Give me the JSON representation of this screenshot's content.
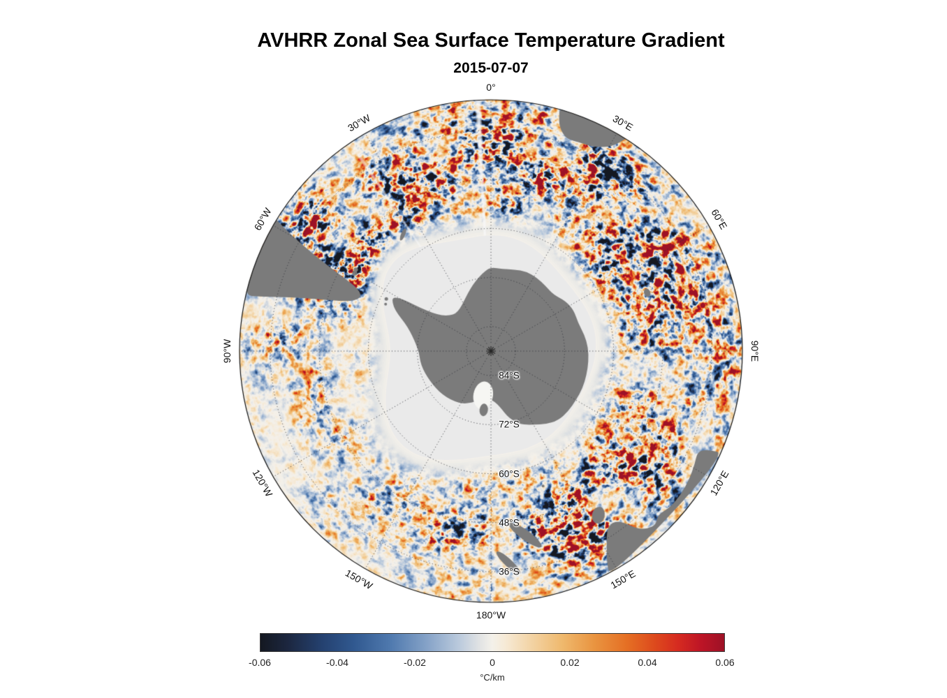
{
  "title": "AVHRR Zonal Sea Surface Temperature Gradient",
  "subtitle": "2015-07-07",
  "map": {
    "projection": "south-polar-stereographic",
    "outer_colatitude_deg": 61.5,
    "meridian_labels": [
      {
        "lon_deg": 0,
        "label": "0°"
      },
      {
        "lon_deg": 30,
        "label": "30°E"
      },
      {
        "lon_deg": 60,
        "label": "60°E"
      },
      {
        "lon_deg": 90,
        "label": "90°E"
      },
      {
        "lon_deg": 120,
        "label": "120°E"
      },
      {
        "lon_deg": 150,
        "label": "150°E"
      },
      {
        "lon_deg": 180,
        "label": "180°W"
      },
      {
        "lon_deg": 210,
        "label": "150°W"
      },
      {
        "lon_deg": 240,
        "label": "120°W"
      },
      {
        "lon_deg": 270,
        "label": "90°W"
      },
      {
        "lon_deg": 300,
        "label": "60°W"
      },
      {
        "lon_deg": 330,
        "label": "30°W"
      }
    ],
    "parallel_labels": [
      {
        "lat_deg_s": 84,
        "label": "84°S"
      },
      {
        "lat_deg_s": 72,
        "label": "72°S"
      },
      {
        "lat_deg_s": 60,
        "label": "60°S"
      },
      {
        "lat_deg_s": 48,
        "label": "48°S"
      },
      {
        "lat_deg_s": 36,
        "label": "36°S"
      }
    ],
    "land_color": "#7b7b7b",
    "sea_ice_color": "#eaeaea",
    "ocean_zero_color": "#f4f1ea",
    "graticule_color": "#2c2f36"
  },
  "colorbar": {
    "min": -0.06,
    "max": 0.06,
    "ticks": [
      "-0.06",
      "-0.04",
      "-0.02",
      "0",
      "0.02",
      "0.04",
      "0.06"
    ],
    "tick_values": [
      -0.06,
      -0.04,
      -0.02,
      0,
      0.02,
      0.04,
      0.06
    ],
    "unit_label": "°C/km",
    "stops": [
      {
        "t": 0.0,
        "c": "#141821"
      },
      {
        "t": 0.06,
        "c": "#1c2740"
      },
      {
        "t": 0.13,
        "c": "#24406e"
      },
      {
        "t": 0.2,
        "c": "#30588f"
      },
      {
        "t": 0.28,
        "c": "#4f79ae"
      },
      {
        "t": 0.36,
        "c": "#86a3c8"
      },
      {
        "t": 0.43,
        "c": "#bccbdd"
      },
      {
        "t": 0.475,
        "c": "#e3e4e4"
      },
      {
        "t": 0.5,
        "c": "#f4f1ea"
      },
      {
        "t": 0.53,
        "c": "#f6e9d4"
      },
      {
        "t": 0.58,
        "c": "#f3d5a8"
      },
      {
        "t": 0.65,
        "c": "#efb96e"
      },
      {
        "t": 0.72,
        "c": "#e99440"
      },
      {
        "t": 0.79,
        "c": "#e56f24"
      },
      {
        "t": 0.85,
        "c": "#dd4a1d"
      },
      {
        "t": 0.9,
        "c": "#d62b20"
      },
      {
        "t": 0.95,
        "c": "#bd1526"
      },
      {
        "t": 1.0,
        "c": "#9d1126"
      }
    ]
  },
  "chart_data": {
    "type": "heatmap",
    "title": "AVHRR Zonal Sea Surface Temperature Gradient",
    "date": "2015-07-07",
    "projection": "south polar stereographic, South Pole centered, 0° longitude at top, east clockwise",
    "units": "°C/km",
    "value_range": [
      -0.06,
      0.06
    ],
    "colorbar_ticks": [
      -0.06,
      -0.04,
      -0.02,
      0,
      0.02,
      0.04,
      0.06
    ],
    "colormap": "diverging dark-blue / white / dark-red (balance-like)",
    "graticule": {
      "meridian_step_deg": 30,
      "parallels_deg_s": [
        36,
        48,
        60,
        72,
        84
      ]
    },
    "legend_position": "horizontal colorbar bottom",
    "notable_features": [
      "Antarctica continent in dark gray at center",
      "Winter sea-ice cover in light gray surrounding Antarctica to roughly 60°S",
      "Strong positive/negative gradient eddies along Antarctic Circumpolar Current band (36°S-55°S)",
      "Intense Agulhas Return Current activity southeast of Africa (20°E-60°E)",
      "Intense Brazil-Malvinas Confluence activity east of South America (~55°W)",
      "Land at map edge: South America, southern Africa, Australia, Tasmania, New Zealand"
    ]
  }
}
